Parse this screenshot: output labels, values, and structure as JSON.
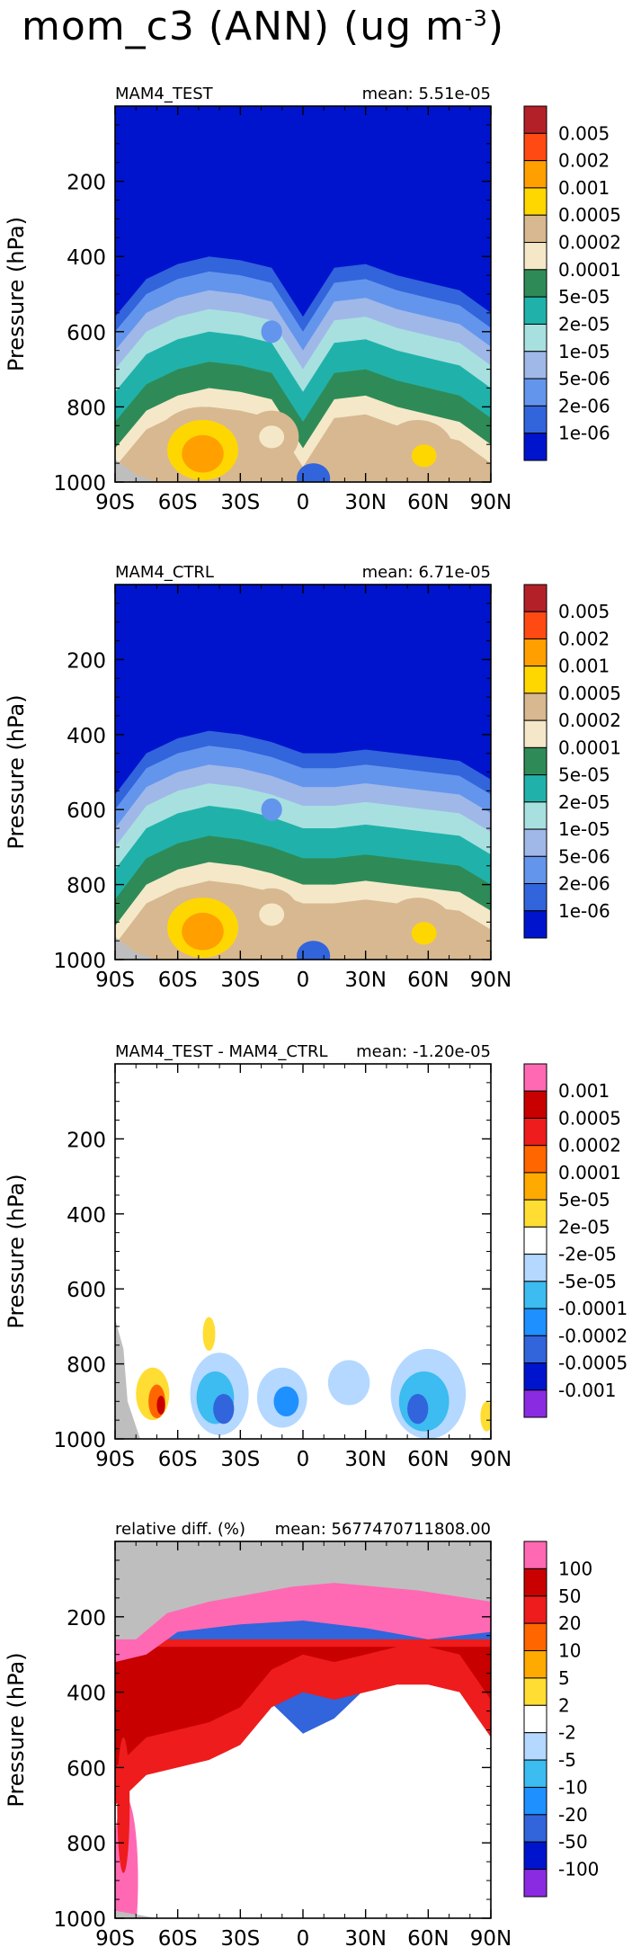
{
  "figure": {
    "title": "mom_c3 (ANN) (ug m",
    "title_exponent": "-3"
  },
  "chart_data": [
    {
      "type": "heatmap",
      "title": "MAM4_TEST",
      "mean_label": "mean: 5.51e-05",
      "xlabel": "",
      "ylabel": "Pressure (hPa)",
      "x_ticks": [
        "90S",
        "60S",
        "30S",
        "0",
        "30N",
        "60N",
        "90N"
      ],
      "x_range": [
        -90,
        90
      ],
      "y_ticks": [
        "200",
        "400",
        "600",
        "800",
        "1000"
      ],
      "y_tick_values": [
        200,
        400,
        600,
        800,
        1000
      ],
      "ylim": [
        1000,
        0
      ],
      "y_inverted": true,
      "colorbar_labels": [
        "0.005",
        "0.002",
        "0.001",
        "0.0005",
        "0.0002",
        "0.0001",
        "5e-05",
        "2e-05",
        "1e-05",
        "5e-06",
        "2e-06",
        "1e-06"
      ],
      "colors": [
        "#b42028",
        "#ff4a14",
        "#ff9f00",
        "#ffd700",
        "#d8b890",
        "#f4e8c8",
        "#2e8b57",
        "#20b2aa",
        "#a8e0e0",
        "#a0b8e8",
        "#6495ed",
        "#3264dc",
        "#0014cd"
      ],
      "profile": {
        "x": [
          -90,
          -75,
          -60,
          -45,
          -30,
          -15,
          0,
          15,
          30,
          45,
          60,
          75,
          90
        ],
        "top_of_signal_hPa": [
          560,
          460,
          420,
          400,
          410,
          430,
          560,
          430,
          420,
          450,
          470,
          490,
          550
        ],
        "max_value_lat": -48
      }
    },
    {
      "type": "heatmap",
      "title": "MAM4_CTRL",
      "mean_label": "mean: 6.71e-05",
      "xlabel": "",
      "ylabel": "Pressure (hPa)",
      "x_ticks": [
        "90S",
        "60S",
        "30S",
        "0",
        "30N",
        "60N",
        "90N"
      ],
      "x_range": [
        -90,
        90
      ],
      "y_ticks": [
        "200",
        "400",
        "600",
        "800",
        "1000"
      ],
      "y_tick_values": [
        200,
        400,
        600,
        800,
        1000
      ],
      "ylim": [
        1000,
        0
      ],
      "y_inverted": true,
      "colorbar_labels": [
        "0.005",
        "0.002",
        "0.001",
        "0.0005",
        "0.0002",
        "0.0001",
        "5e-05",
        "2e-05",
        "1e-05",
        "5e-06",
        "2e-06",
        "1e-06"
      ],
      "colors": [
        "#b42028",
        "#ff4a14",
        "#ff9f00",
        "#ffd700",
        "#d8b890",
        "#f4e8c8",
        "#2e8b57",
        "#20b2aa",
        "#a8e0e0",
        "#a0b8e8",
        "#6495ed",
        "#3264dc",
        "#0014cd"
      ],
      "profile": {
        "x": [
          -90,
          -75,
          -60,
          -45,
          -30,
          -15,
          0,
          15,
          30,
          45,
          60,
          75,
          90
        ],
        "top_of_signal_hPa": [
          560,
          450,
          410,
          390,
          400,
          420,
          450,
          450,
          440,
          450,
          460,
          470,
          520
        ],
        "max_value_lat": -48
      }
    },
    {
      "type": "heatmap",
      "title": "MAM4_TEST - MAM4_CTRL",
      "mean_label": "mean: -1.20e-05",
      "xlabel": "",
      "ylabel": "Pressure (hPa)",
      "x_ticks": [
        "90S",
        "60S",
        "30S",
        "0",
        "30N",
        "60N",
        "90N"
      ],
      "x_range": [
        -90,
        90
      ],
      "y_ticks": [
        "200",
        "400",
        "600",
        "800",
        "1000"
      ],
      "y_tick_values": [
        200,
        400,
        600,
        800,
        1000
      ],
      "ylim": [
        1000,
        0
      ],
      "y_inverted": true,
      "colorbar_labels": [
        "0.001",
        "0.0005",
        "0.0002",
        "0.0001",
        "5e-05",
        "2e-05",
        "-2e-05",
        "-5e-05",
        "-0.0001",
        "-0.0002",
        "-0.0005",
        "-0.001"
      ],
      "colors": [
        "#ff69b4",
        "#c80000",
        "#ee1c1c",
        "#ff6600",
        "#ffaa00",
        "#ffdd33",
        "#ffffff",
        "#b4d8ff",
        "#3cbcf0",
        "#1e90ff",
        "#3264dc",
        "#0014cd",
        "#8a2be2"
      ]
    },
    {
      "type": "heatmap",
      "title": "relative diff. (%)",
      "mean_label": "mean: 5677470711808.00",
      "xlabel": "",
      "ylabel": "Pressure (hPa)",
      "x_ticks": [
        "90S",
        "60S",
        "30S",
        "0",
        "30N",
        "60N",
        "90N"
      ],
      "x_range": [
        -90,
        90
      ],
      "y_ticks": [
        "200",
        "400",
        "600",
        "800",
        "1000"
      ],
      "y_tick_values": [
        200,
        400,
        600,
        800,
        1000
      ],
      "ylim": [
        1000,
        0
      ],
      "y_inverted": true,
      "colorbar_labels": [
        "100",
        "50",
        "20",
        "10",
        "5",
        "2",
        "-2",
        "-5",
        "-10",
        "-20",
        "-50",
        "-100"
      ],
      "colors": [
        "#ff69b4",
        "#c80000",
        "#ee1c1c",
        "#ff6600",
        "#ffaa00",
        "#ffdd33",
        "#ffffff",
        "#b4d8ff",
        "#3cbcf0",
        "#1e90ff",
        "#3264dc",
        "#0014cd",
        "#8a2be2"
      ]
    }
  ]
}
